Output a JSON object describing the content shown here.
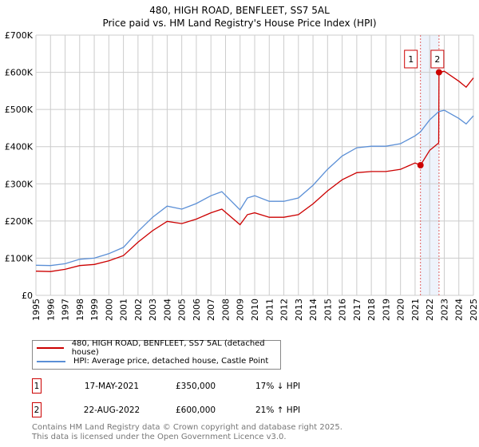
{
  "chart_data": {
    "type": "line",
    "title": "480, HIGH ROAD, BENFLEET, SS7 5AL",
    "subtitle": "Price paid vs. HM Land Registry's House Price Index (HPI)",
    "xlim": [
      1995,
      2025
    ],
    "ylim": [
      0,
      700000
    ],
    "x_ticks": [
      "1995",
      "1996",
      "1997",
      "1998",
      "1999",
      "2000",
      "2001",
      "2002",
      "2003",
      "2004",
      "2005",
      "2006",
      "2007",
      "2008",
      "2009",
      "2010",
      "2011",
      "2012",
      "2013",
      "2014",
      "2015",
      "2016",
      "2017",
      "2018",
      "2019",
      "2020",
      "2021",
      "2022",
      "2023",
      "2024",
      "2025"
    ],
    "y_ticks": [
      {
        "v": 0,
        "label": "£0"
      },
      {
        "v": 100000,
        "label": "£100K"
      },
      {
        "v": 200000,
        "label": "£200K"
      },
      {
        "v": 300000,
        "label": "£300K"
      },
      {
        "v": 400000,
        "label": "£400K"
      },
      {
        "v": 500000,
        "label": "£500K"
      },
      {
        "v": 600000,
        "label": "£600K"
      },
      {
        "v": 700000,
        "label": "£700K"
      }
    ],
    "grid": true,
    "series": [
      {
        "name": "480, HIGH ROAD, BENFLEET, SS7 5AL (detached house)",
        "color": "#cc0000",
        "x": [
          1995,
          1996,
          1997,
          1998,
          1999,
          2000,
          2001,
          2002,
          2003,
          2004,
          2005,
          2006,
          2007,
          2007.75,
          2009,
          2009.5,
          2010,
          2011,
          2012,
          2013,
          2014,
          2015,
          2016,
          2017,
          2018,
          2019,
          2020,
          2021,
          2021.37,
          2022,
          2022.62,
          2022.64,
          2023,
          2024,
          2024.5,
          2025
        ],
        "values": [
          65000,
          64000,
          70000,
          80000,
          83000,
          93000,
          107000,
          143000,
          174000,
          199000,
          193000,
          205000,
          222000,
          232000,
          190000,
          217000,
          222000,
          210000,
          210000,
          217000,
          246000,
          281000,
          311000,
          330000,
          333000,
          333000,
          339000,
          356000,
          350000,
          390000,
          410000,
          600000,
          603000,
          576000,
          560000,
          585000
        ]
      },
      {
        "name": "HPI: Average price, detached house, Castle Point",
        "color": "#5b8fd6",
        "x": [
          1995,
          1996,
          1997,
          1998,
          1999,
          2000,
          2001,
          2002,
          2003,
          2004,
          2005,
          2006,
          2007,
          2007.75,
          2009,
          2009.5,
          2010,
          2011,
          2012,
          2013,
          2014,
          2015,
          2016,
          2017,
          2018,
          2019,
          2020,
          2021,
          2021.37,
          2022,
          2022.62,
          2023,
          2024,
          2024.5,
          2025
        ],
        "values": [
          81000,
          80000,
          85000,
          97000,
          100000,
          112000,
          129000,
          172000,
          210000,
          240000,
          232000,
          247000,
          268000,
          279000,
          230000,
          262000,
          268000,
          253000,
          253000,
          262000,
          296000,
          339000,
          375000,
          397000,
          401000,
          401000,
          408000,
          429000,
          440000,
          472000,
          494000,
          498000,
          476000,
          461000,
          483000
        ]
      }
    ],
    "sales": [
      {
        "id": "1",
        "x": 2021.37,
        "value": 350000,
        "date": "17-MAY-2021",
        "price": "£350,000",
        "hpi": "17% ↓ HPI"
      },
      {
        "id": "2",
        "x": 2022.64,
        "value": 600000,
        "date": "22-AUG-2022",
        "price": "£600,000",
        "hpi": "21% ↑ HPI"
      }
    ],
    "legend_placement": "below"
  },
  "footer": {
    "line1": "Contains HM Land Registry data © Crown copyright and database right 2025.",
    "line2": "This data is licensed under the Open Government Licence v3.0."
  }
}
